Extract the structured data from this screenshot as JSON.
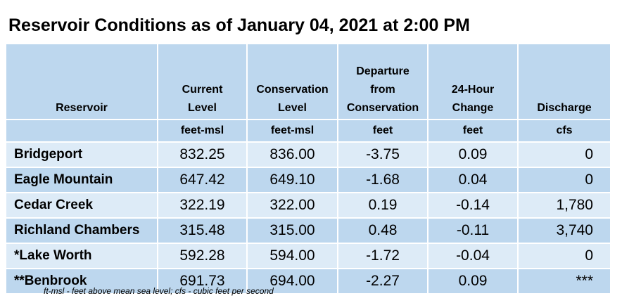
{
  "title": "Reservoir Conditions as of January 04, 2021 at 2:00 PM",
  "columns": [
    {
      "label_lines": [
        "Reservoir"
      ],
      "unit": ""
    },
    {
      "label_lines": [
        "Current",
        "Level"
      ],
      "unit": "feet-msl"
    },
    {
      "label_lines": [
        "Conservation",
        "Level"
      ],
      "unit": "feet-msl"
    },
    {
      "label_lines": [
        "Departure",
        "from",
        "Conservation"
      ],
      "unit": "feet"
    },
    {
      "label_lines": [
        "24-Hour",
        "Change"
      ],
      "unit": "feet"
    },
    {
      "label_lines": [
        "Discharge"
      ],
      "unit": "cfs"
    }
  ],
  "rows": [
    {
      "reservoir": "Bridgeport",
      "current": "832.25",
      "conservation": "836.00",
      "departure": "-3.75",
      "change": "0.09",
      "discharge": "0"
    },
    {
      "reservoir": "Eagle Mountain",
      "current": "647.42",
      "conservation": "649.10",
      "departure": "-1.68",
      "change": "0.04",
      "discharge": "0"
    },
    {
      "reservoir": "Cedar Creek",
      "current": "322.19",
      "conservation": "322.00",
      "departure": "0.19",
      "change": "-0.14",
      "discharge": "1,780"
    },
    {
      "reservoir": "Richland Chambers",
      "current": "315.48",
      "conservation": "315.00",
      "departure": "0.48",
      "change": "-0.11",
      "discharge": "3,740"
    },
    {
      "reservoir": "*Lake Worth",
      "current": "592.28",
      "conservation": "594.00",
      "departure": "-1.72",
      "change": "-0.04",
      "discharge": "0"
    },
    {
      "reservoir": "**Benbrook",
      "current": "691.73",
      "conservation": "694.00",
      "departure": "-2.27",
      "change": "0.09",
      "discharge": "***"
    }
  ],
  "footnote": "ft-msl - feet above mean sea level; cfs - cubic feet per second"
}
